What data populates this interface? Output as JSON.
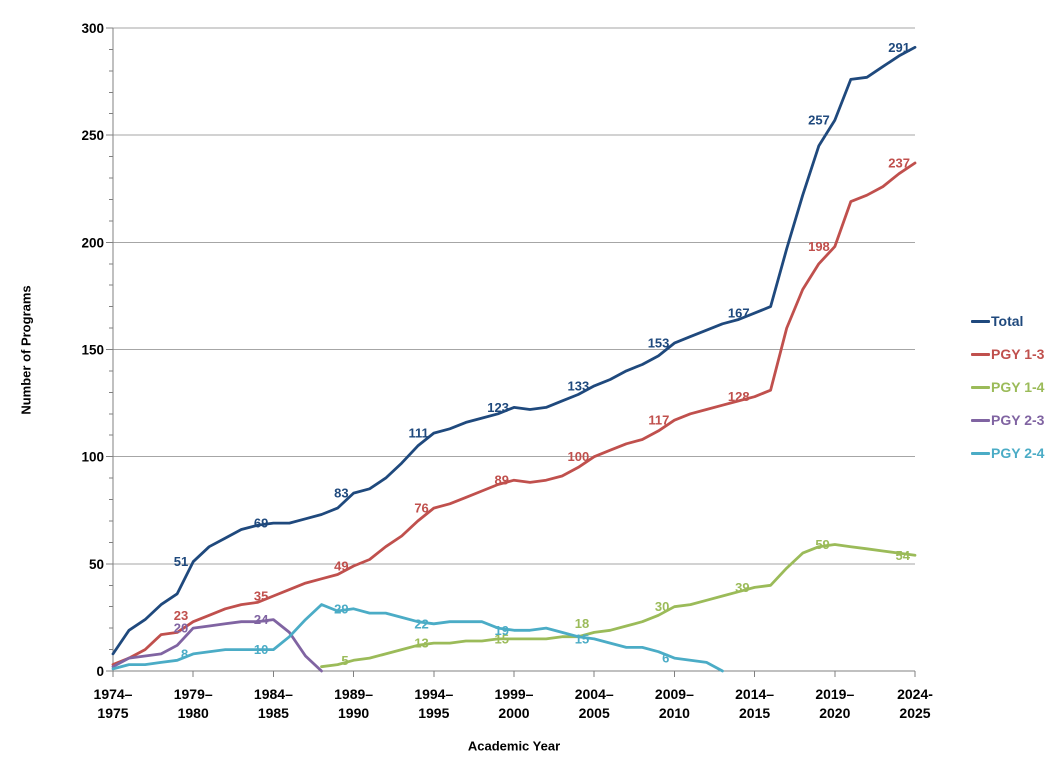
{
  "chart_data": {
    "type": "line",
    "title": "",
    "xlabel": "Academic Year",
    "ylabel": "Number of Programs",
    "ylim": [
      0,
      300
    ],
    "ytick_step": 50,
    "y_minor_step": 10,
    "grid": true,
    "legend_position": "right",
    "x_range": [
      1974,
      2024
    ],
    "x_tick_years": [
      1974,
      1979,
      1984,
      1989,
      1994,
      1999,
      2004,
      2009,
      2014,
      2019,
      2024
    ],
    "x_tick_labels": [
      [
        "1974–",
        "1975"
      ],
      [
        "1979–",
        "1980"
      ],
      [
        "1984–",
        "1985"
      ],
      [
        "1989–",
        "1990"
      ],
      [
        "1994–",
        "1995"
      ],
      [
        "1999–",
        "2000"
      ],
      [
        "2004–",
        "2005"
      ],
      [
        "2009–",
        "2010"
      ],
      [
        "2014–",
        "2015"
      ],
      [
        "2019–",
        "2020"
      ],
      [
        "2024-",
        "2025"
      ]
    ],
    "colors": {
      "gridline": "#A6A6A6",
      "axis": "#808080",
      "tick_text": "#000000"
    },
    "series": [
      {
        "name": "Total",
        "color": "#1F497D",
        "start_year": 1974,
        "values": [
          8,
          19,
          24,
          31,
          36,
          51,
          58,
          62,
          66,
          68,
          69,
          69,
          71,
          73,
          76,
          83,
          85,
          90,
          97,
          105,
          111,
          113,
          116,
          118,
          120,
          123,
          122,
          123,
          126,
          129,
          133,
          136,
          140,
          143,
          147,
          153,
          156,
          159,
          162,
          164,
          167,
          170,
          197,
          222,
          245,
          257,
          276,
          277,
          282,
          287,
          291
        ],
        "labels": [
          [
            1979,
            51
          ],
          [
            1984,
            69
          ],
          [
            1989,
            83
          ],
          [
            1994,
            111
          ],
          [
            1999,
            123
          ],
          [
            2004,
            133
          ],
          [
            2009,
            153
          ],
          [
            2014,
            167
          ],
          [
            2019,
            257
          ],
          [
            2024,
            291
          ]
        ]
      },
      {
        "name": "PGY 1-3",
        "color": "#C0504D",
        "start_year": 1974,
        "values": [
          3,
          6,
          10,
          17,
          18,
          23,
          26,
          29,
          31,
          32,
          35,
          38,
          41,
          43,
          45,
          49,
          52,
          58,
          63,
          70,
          76,
          78,
          81,
          84,
          87,
          89,
          88,
          89,
          91,
          95,
          100,
          103,
          106,
          108,
          112,
          117,
          120,
          122,
          124,
          126,
          128,
          131,
          160,
          178,
          190,
          198,
          219,
          222,
          226,
          232,
          237
        ],
        "labels": [
          [
            1979,
            23,
            -6
          ],
          [
            1984,
            35
          ],
          [
            1989,
            49
          ],
          [
            1994,
            76
          ],
          [
            1999,
            89
          ],
          [
            2004,
            100
          ],
          [
            2009,
            117
          ],
          [
            2014,
            128
          ],
          [
            2019,
            198
          ],
          [
            2024,
            237
          ]
        ]
      },
      {
        "name": "PGY 1-4",
        "color": "#9BBB59",
        "start_year": 1987,
        "values": [
          2,
          3,
          5,
          6,
          8,
          10,
          12,
          13,
          13,
          14,
          14,
          15,
          15,
          15,
          15,
          16,
          16,
          18,
          19,
          21,
          23,
          26,
          30,
          31,
          33,
          35,
          37,
          39,
          40,
          48,
          55,
          58,
          59,
          58,
          57,
          56,
          55,
          54
        ],
        "labels": [
          [
            1989,
            5
          ],
          [
            1994,
            13
          ],
          [
            1999,
            15
          ],
          [
            2004,
            18,
            -9
          ],
          [
            2009,
            30
          ],
          [
            2014,
            39
          ],
          [
            2019,
            59
          ],
          [
            2024,
            54
          ]
        ]
      },
      {
        "name": "PGY 2-3",
        "color": "#8064A2",
        "start_year": 1974,
        "values": [
          2,
          6,
          7,
          8,
          12,
          20,
          21,
          22,
          23,
          23,
          24,
          18,
          7,
          0
        ],
        "labels": [
          [
            1979,
            20
          ],
          [
            1984,
            24
          ]
        ]
      },
      {
        "name": "PGY 2-4",
        "color": "#4BACC6",
        "start_year": 1974,
        "values": [
          1,
          3,
          3,
          4,
          5,
          8,
          9,
          10,
          10,
          10,
          10,
          16,
          24,
          31,
          28,
          29,
          27,
          27,
          25,
          23,
          22,
          23,
          23,
          23,
          20,
          19,
          19,
          20,
          18,
          16,
          15,
          13,
          11,
          11,
          9,
          6,
          5,
          4,
          0
        ],
        "labels": [
          [
            1979,
            8
          ],
          [
            1984,
            10
          ],
          [
            1989,
            29
          ],
          [
            1994,
            22
          ],
          [
            1999,
            19
          ],
          [
            2004,
            15
          ],
          [
            2009,
            6
          ]
        ]
      }
    ]
  },
  "legend": {
    "items": [
      "Total",
      "PGY 1-3",
      "PGY 1-4",
      "PGY 2-3",
      "PGY 2-4"
    ]
  }
}
